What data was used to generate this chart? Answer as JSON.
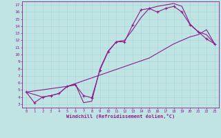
{
  "xlabel": "Windchill (Refroidissement éolien,°C)",
  "bg_color": "#c0e4e4",
  "line_color": "#8b1a8b",
  "xlim": [
    -0.5,
    23.5
  ],
  "ylim": [
    2.5,
    17.5
  ],
  "xticks": [
    0,
    1,
    2,
    3,
    4,
    5,
    6,
    7,
    8,
    9,
    10,
    11,
    12,
    13,
    14,
    15,
    16,
    17,
    18,
    19,
    20,
    21,
    22,
    23
  ],
  "yticks": [
    3,
    4,
    5,
    6,
    7,
    8,
    9,
    10,
    11,
    12,
    13,
    14,
    15,
    16,
    17
  ],
  "line1_x": [
    0,
    1,
    2,
    3,
    4,
    5,
    6,
    7,
    8,
    9,
    10,
    11,
    12,
    13,
    14,
    15,
    16,
    17,
    18,
    19,
    20,
    21,
    22,
    23
  ],
  "line1_y": [
    4.7,
    3.2,
    4.0,
    4.2,
    4.5,
    5.5,
    5.7,
    4.2,
    3.9,
    7.8,
    10.4,
    11.8,
    11.8,
    14.2,
    16.3,
    16.5,
    16.0,
    16.5,
    16.8,
    16.0,
    14.2,
    13.2,
    12.2,
    11.5
  ],
  "line2_x": [
    0,
    2,
    3,
    4,
    5,
    6,
    7,
    8,
    9,
    10,
    11,
    12,
    13,
    14,
    15,
    16,
    17,
    18,
    19,
    20,
    21,
    22,
    23
  ],
  "line2_y": [
    4.7,
    4.0,
    4.2,
    4.5,
    5.5,
    5.8,
    3.2,
    3.4,
    8.0,
    10.5,
    11.8,
    12.0,
    13.5,
    15.2,
    16.5,
    16.8,
    17.0,
    17.2,
    16.8,
    14.3,
    13.2,
    12.8,
    11.5
  ],
  "line3_x": [
    0,
    5,
    10,
    15,
    18,
    20,
    21,
    22,
    23
  ],
  "line3_y": [
    4.7,
    5.5,
    7.5,
    9.5,
    11.5,
    12.5,
    12.8,
    13.5,
    11.5
  ]
}
